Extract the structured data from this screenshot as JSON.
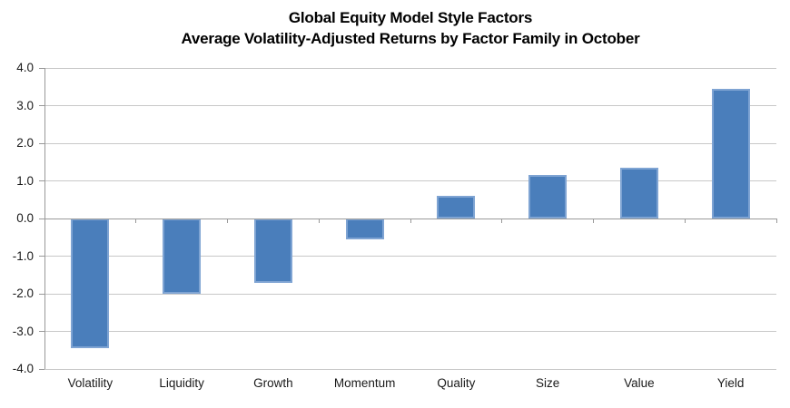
{
  "chart_data": {
    "type": "bar",
    "title": "Global Equity Model Style Factors",
    "subtitle": "Average Volatility-Adjusted Returns by Factor Family in October",
    "categories": [
      "Volatility",
      "Liquidity",
      "Growth",
      "Momentum",
      "Quality",
      "Size",
      "Value",
      "Yield"
    ],
    "values": [
      -3.45,
      -2.0,
      -1.7,
      -0.55,
      0.6,
      1.15,
      1.35,
      3.45
    ],
    "xlabel": "",
    "ylabel": "",
    "ylim": [
      -4.0,
      4.0
    ],
    "yticks": [
      4.0,
      3.0,
      2.0,
      1.0,
      0.0,
      -1.0,
      -2.0,
      -3.0,
      -4.0
    ],
    "ytick_decimals": 1,
    "grid": true,
    "legend": false,
    "colors": {
      "bar_fill": "#4A7EBB",
      "bar_border": "#7FA4D3",
      "gridline": "#C8C8C8",
      "axis_line": "#999999",
      "title_text": "#000000",
      "axis_text": "#1A1A1A",
      "background": "#FFFFFF"
    }
  }
}
